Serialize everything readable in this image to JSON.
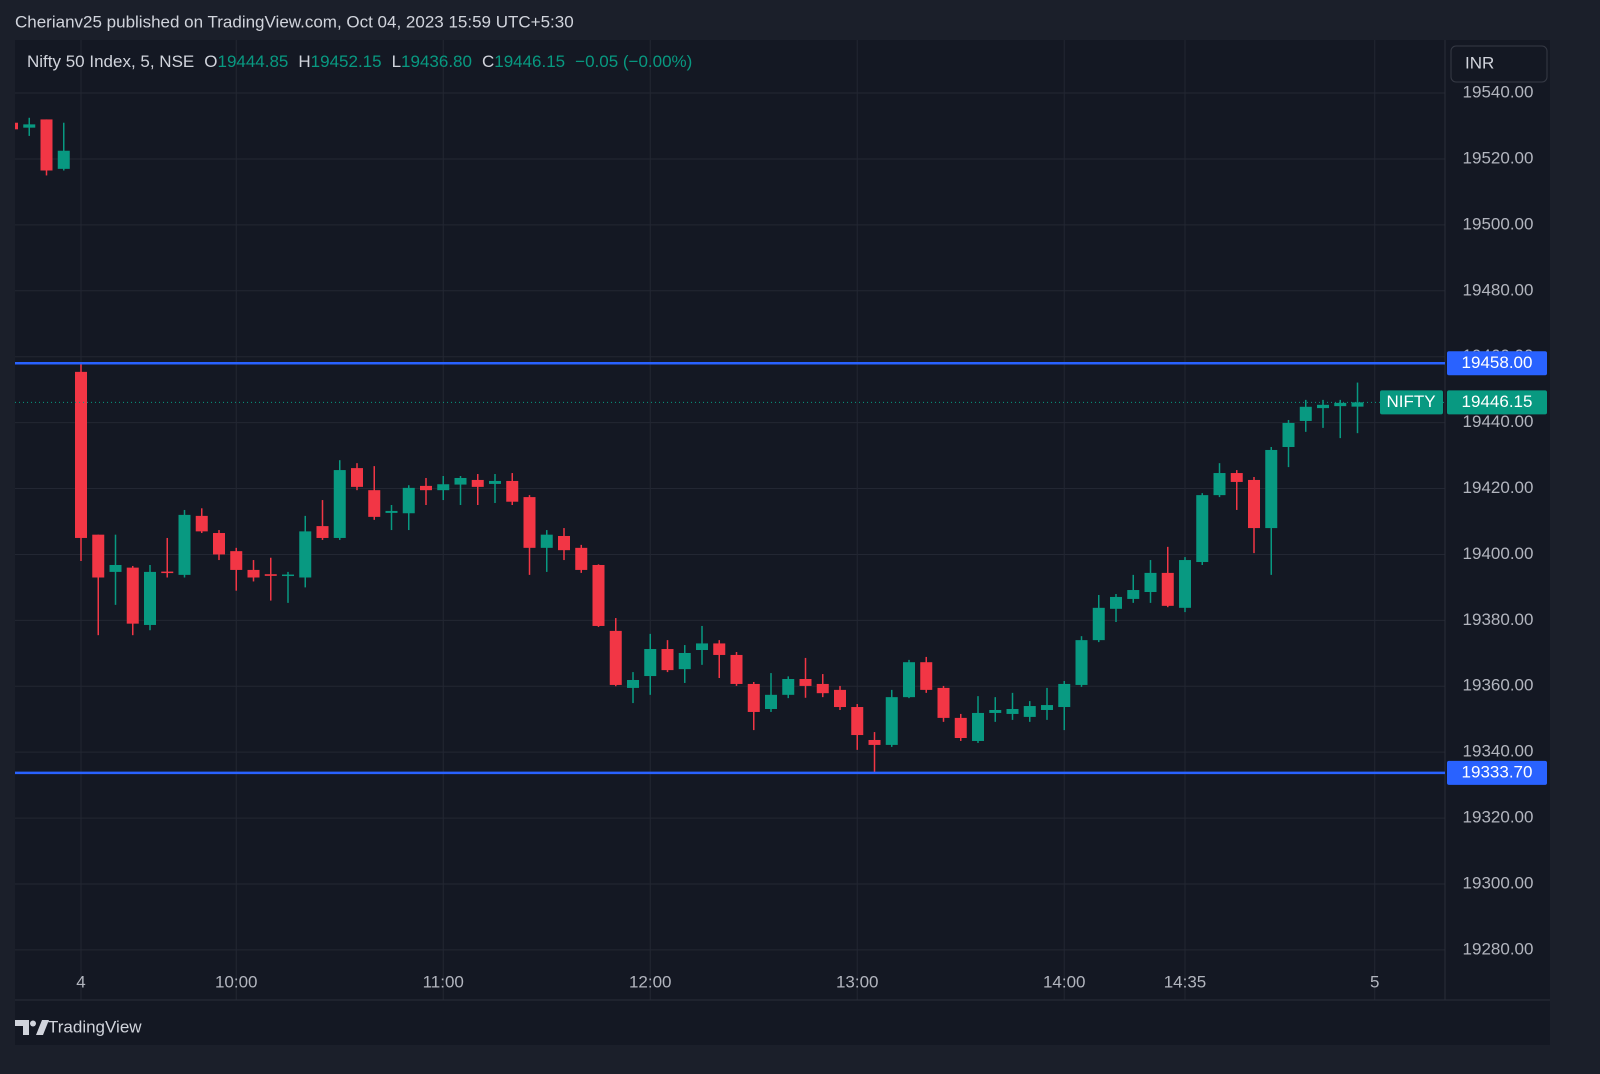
{
  "header": "Cherianv25 published on TradingView.com, Oct 04, 2023 15:59 UTC+5:30",
  "currency": "INR",
  "brand": "TradingView",
  "chart_data": {
    "type": "candlestick",
    "title": "Nifty 50 Index, 5, NSE",
    "legend": [
      {
        "key": "O",
        "value": 19444.85
      },
      {
        "key": "H",
        "value": 19452.15
      },
      {
        "key": "L",
        "value": 19436.8,
        "label": "19436.80"
      },
      {
        "key": "C",
        "value": 19446.15
      }
    ],
    "change": "−0.05 (−0.00%)",
    "up_color": "#089981",
    "down_color": "#f23645",
    "x": [
      -4,
      -3,
      -2,
      -1,
      0,
      1,
      2,
      3,
      4,
      5,
      6,
      7,
      8,
      9,
      10,
      11,
      12,
      13,
      14,
      15,
      16,
      17,
      18,
      19,
      20,
      21,
      22,
      23,
      24,
      25,
      26,
      27,
      28,
      29,
      30,
      31,
      32,
      33,
      34,
      35,
      36,
      37,
      38,
      39,
      40,
      41,
      42,
      43,
      44,
      45,
      46,
      47,
      48,
      49,
      50,
      51,
      52,
      53,
      54,
      55,
      56,
      57,
      58,
      59,
      60,
      61,
      62,
      63,
      64,
      65,
      66,
      67,
      68,
      69,
      70,
      71,
      72,
      73,
      74
    ],
    "open": [
      19531,
      19529.5,
      19532,
      19517,
      19455.4,
      19406,
      19394.7,
      19396,
      19378.6,
      19394.8,
      19393.8,
      19411.7,
      19406.5,
      19401,
      19395.3,
      19394,
      19393.5,
      19393,
      19408.6,
      19405,
      19426.2,
      19419.5,
      19412.6,
      19412.5,
      19420.8,
      19419.5,
      19421.2,
      19422.6,
      19421.4,
      19422.3,
      19417.4,
      19402,
      19405.6,
      19402,
      19396.8,
      19376.8,
      19359.5,
      19363.1,
      19371.3,
      19365.2,
      19371,
      19373,
      19369.5,
      19360.7,
      19353.1,
      19357.4,
      19362.2,
      19360.7,
      19358.9,
      19353.7,
      19343.7,
      19342.2,
      19356.7,
      19367.3,
      19359.5,
      19350.4,
      19343.4,
      19351.9,
      19351.6,
      19350.7,
      19352.8,
      19353.7,
      19360.4,
      19374,
      19383.5,
      19386.5,
      19388.6,
      19394.4,
      19383.8,
      19397.7,
      19418,
      19424.7,
      19422.6,
      19408,
      19432.6,
      19440.5,
      19444.4,
      19445,
      19444.85
    ],
    "high": [
      19531,
      19532.5,
      19532,
      19531,
      19458,
      19406,
      19406,
      19396.5,
      19396.8,
      19405,
      19413.5,
      19414,
      19407.4,
      19402,
      19398.3,
      19399,
      19394.7,
      19411.7,
      19416.5,
      19428.6,
      19427.7,
      19426.8,
      19415,
      19421,
      19423.2,
      19423.8,
      19423.8,
      19424.4,
      19424.4,
      19424.7,
      19418,
      19407.4,
      19408,
      19402.9,
      19397,
      19380.7,
      19364.3,
      19375.9,
      19374,
      19372.5,
      19378.3,
      19374,
      19370.4,
      19361.3,
      19364,
      19363,
      19368.6,
      19363.7,
      19360.1,
      19354.6,
      19346.1,
      19358.9,
      19368,
      19368.9,
      19360.1,
      19351.6,
      19357,
      19356.7,
      19358,
      19355.5,
      19359.5,
      19361.6,
      19375.2,
      19387.7,
      19388,
      19393.8,
      19398.3,
      19402.3,
      19399.2,
      19418.6,
      19427.7,
      19425.6,
      19423.5,
      19432.6,
      19440.8,
      19446.9,
      19446.9,
      19446.9,
      19452.15
    ],
    "low": [
      19529,
      19527,
      19515,
      19516.5,
      19398,
      19375.5,
      19384.7,
      19375.5,
      19377,
      19393,
      19393,
      19406.5,
      19398.3,
      19389,
      19391.8,
      19386,
      19385.3,
      19390,
      19404.4,
      19404.4,
      19419.5,
      19410.5,
      19407.4,
      19407.4,
      19415,
      19416.5,
      19415,
      19415,
      19415.6,
      19415,
      19393.8,
      19394.7,
      19398.3,
      19394.4,
      19378,
      19360,
      19354.9,
      19357.4,
      19364.3,
      19361,
      19366.5,
      19362.5,
      19360.1,
      19346.7,
      19352.2,
      19356.4,
      19356.5,
      19356.7,
      19352.8,
      19340.7,
      19333.7,
      19341.6,
      19356.4,
      19358,
      19349.2,
      19343.4,
      19342.8,
      19349.2,
      19349.8,
      19349.2,
      19349.8,
      19346.7,
      19359.8,
      19373.4,
      19379.5,
      19385.3,
      19385.3,
      19384,
      19382.5,
      19396.8,
      19417.4,
      19413.5,
      19400.4,
      19393.8,
      19426.5,
      19437.2,
      19438.4,
      19435.3,
      19436.8
    ],
    "close": [
      19529,
      19530.5,
      19516.5,
      19522.5,
      19405,
      19393,
      19396.8,
      19379,
      19394.7,
      19394.4,
      19412,
      19407,
      19400,
      19395.3,
      19393,
      19393.5,
      19393.9,
      19407,
      19405,
      19425.6,
      19420.5,
      19411.4,
      19413.2,
      19420.2,
      19419.5,
      19421.3,
      19423.2,
      19420.5,
      19422.3,
      19416,
      19402,
      19406,
      19401.3,
      19395.3,
      19378.3,
      19360.4,
      19361.9,
      19371.3,
      19364.9,
      19370.1,
      19373,
      19369.5,
      19360.7,
      19352.2,
      19357.4,
      19362.2,
      19360.1,
      19357.9,
      19353.7,
      19345.2,
      19342.2,
      19356.7,
      19367.3,
      19358.9,
      19350.4,
      19344.3,
      19351.9,
      19352.8,
      19353.1,
      19354,
      19354.3,
      19360.7,
      19374,
      19383.8,
      19387.1,
      19389.2,
      19394.4,
      19384.4,
      19398.3,
      19418,
      19424.7,
      19422,
      19408,
      19431.7,
      19439.9,
      19444.8,
      19445.4,
      19446,
      19446.15
    ],
    "xlim": [
      -3.826,
      79.072
    ],
    "xticks": [
      {
        "value": 0,
        "label": "4"
      },
      {
        "value": 9,
        "label": "10:00"
      },
      {
        "value": 21,
        "label": "11:00"
      },
      {
        "value": 33,
        "label": "12:00"
      },
      {
        "value": 45,
        "label": "13:00"
      },
      {
        "value": 57,
        "label": "14:00"
      },
      {
        "value": 64,
        "label": "14:35"
      },
      {
        "value": 75,
        "label": "5"
      }
    ],
    "ylim": [
      19264.8,
      19556.1
    ],
    "yticks": [
      {
        "value": 19280,
        "label": "19280.00"
      },
      {
        "value": 19300,
        "label": "19300.00"
      },
      {
        "value": 19320,
        "label": "19320.00"
      },
      {
        "value": 19340,
        "label": "19340.00"
      },
      {
        "value": 19360,
        "label": "19360.00"
      },
      {
        "value": 19380,
        "label": "19380.00"
      },
      {
        "value": 19400,
        "label": "19400.00"
      },
      {
        "value": 19420,
        "label": "19420.00"
      },
      {
        "value": 19440,
        "label": "19440.00"
      },
      {
        "value": 19460,
        "label": "19460.00"
      },
      {
        "value": 19480,
        "label": "19480.00"
      },
      {
        "value": 19500,
        "label": "19500.00"
      },
      {
        "value": 19520,
        "label": "19520.00"
      },
      {
        "value": 19540,
        "label": "19540.00"
      }
    ],
    "grid": true,
    "hlines": [
      {
        "value": 19458,
        "label": "19458.00",
        "color": "#2962ff"
      },
      {
        "value": 19333.7,
        "label": "19333.70",
        "color": "#2962ff"
      }
    ],
    "last_price": {
      "name": "NIFTY",
      "color": "#089981"
    }
  }
}
